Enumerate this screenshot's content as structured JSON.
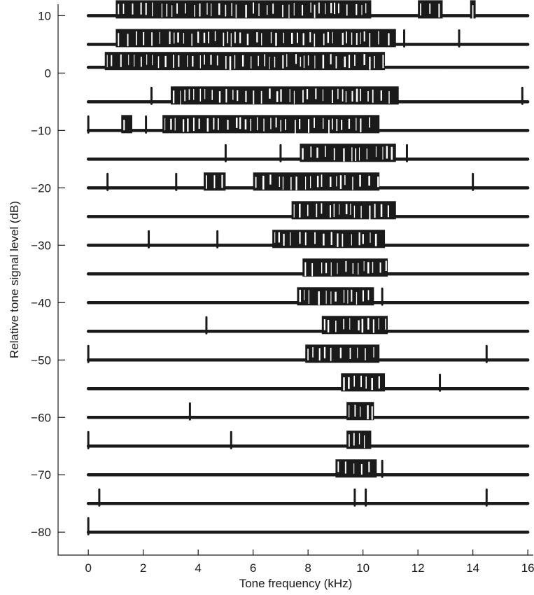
{
  "chart_data": {
    "type": "line",
    "title": "",
    "xlabel": "Tone frequency (kHz)",
    "ylabel": "Relative tone signal level (dB)",
    "xlim": [
      -1.1,
      16.2
    ],
    "ylim": [
      -84,
      12
    ],
    "x_ticks": [
      0,
      2,
      4,
      6,
      8,
      10,
      12,
      14,
      16
    ],
    "x_tick_labels": [
      "0",
      "2",
      "4",
      "6",
      "8",
      "10",
      "12",
      "14",
      "16"
    ],
    "y_ticks": [
      10,
      0,
      -10,
      -20,
      -30,
      -40,
      -50,
      -60,
      -70,
      -80
    ],
    "y_tick_labels": [
      "10",
      "0",
      "−10",
      "−20",
      "−30",
      "−40",
      "−50",
      "−60",
      "−70",
      "−80"
    ],
    "grid": false,
    "traces": [
      {
        "level": 10,
        "bursts": [
          [
            1.0,
            10.3
          ],
          [
            12.0,
            12.9
          ],
          [
            13.9,
            14.1
          ]
        ],
        "spikes": []
      },
      {
        "level": 5,
        "bursts": [
          [
            1.0,
            11.2
          ]
        ],
        "spikes": [
          11.5,
          13.5
        ]
      },
      {
        "level": 1,
        "bursts": [
          [
            0.6,
            10.8
          ]
        ],
        "spikes": []
      },
      {
        "level": -5,
        "bursts": [
          [
            3.0,
            11.3
          ]
        ],
        "spikes": [
          2.3,
          15.8
        ]
      },
      {
        "level": -10,
        "bursts": [
          [
            1.2,
            1.6
          ],
          [
            2.7,
            10.6
          ]
        ],
        "spikes": [
          0.0,
          2.1
        ]
      },
      {
        "level": -15,
        "bursts": [
          [
            7.7,
            11.2
          ]
        ],
        "spikes": [
          5.0,
          7.0,
          11.6
        ]
      },
      {
        "level": -20,
        "bursts": [
          [
            6.0,
            10.6
          ],
          [
            4.2,
            5.0
          ]
        ],
        "spikes": [
          0.7,
          3.2,
          14.0
        ]
      },
      {
        "level": -25,
        "bursts": [
          [
            7.4,
            11.2
          ]
        ],
        "spikes": []
      },
      {
        "level": -30,
        "bursts": [
          [
            6.7,
            10.8
          ]
        ],
        "spikes": [
          2.2,
          4.7
        ]
      },
      {
        "level": -35,
        "bursts": [
          [
            7.8,
            10.9
          ]
        ],
        "spikes": []
      },
      {
        "level": -40,
        "bursts": [
          [
            7.6,
            10.4
          ]
        ],
        "spikes": [
          10.7
        ]
      },
      {
        "level": -45,
        "bursts": [
          [
            8.5,
            10.9
          ]
        ],
        "spikes": [
          4.3
        ]
      },
      {
        "level": -50,
        "bursts": [
          [
            7.9,
            10.6
          ]
        ],
        "spikes": [
          0.0,
          14.5
        ]
      },
      {
        "level": -55,
        "bursts": [
          [
            9.2,
            10.8
          ]
        ],
        "spikes": [
          12.8
        ]
      },
      {
        "level": -60,
        "bursts": [
          [
            9.4,
            10.4
          ]
        ],
        "spikes": [
          3.7
        ]
      },
      {
        "level": -65,
        "bursts": [
          [
            9.4,
            10.3
          ]
        ],
        "spikes": [
          0.0,
          5.2
        ]
      },
      {
        "level": -70,
        "bursts": [
          [
            9.0,
            10.5
          ]
        ],
        "spikes": [
          10.7
        ]
      },
      {
        "level": -75,
        "bursts": [],
        "spikes": [
          0.4,
          9.7,
          10.1,
          14.5
        ]
      },
      {
        "level": -80,
        "bursts": [],
        "spikes": [
          0.0
        ]
      }
    ]
  }
}
